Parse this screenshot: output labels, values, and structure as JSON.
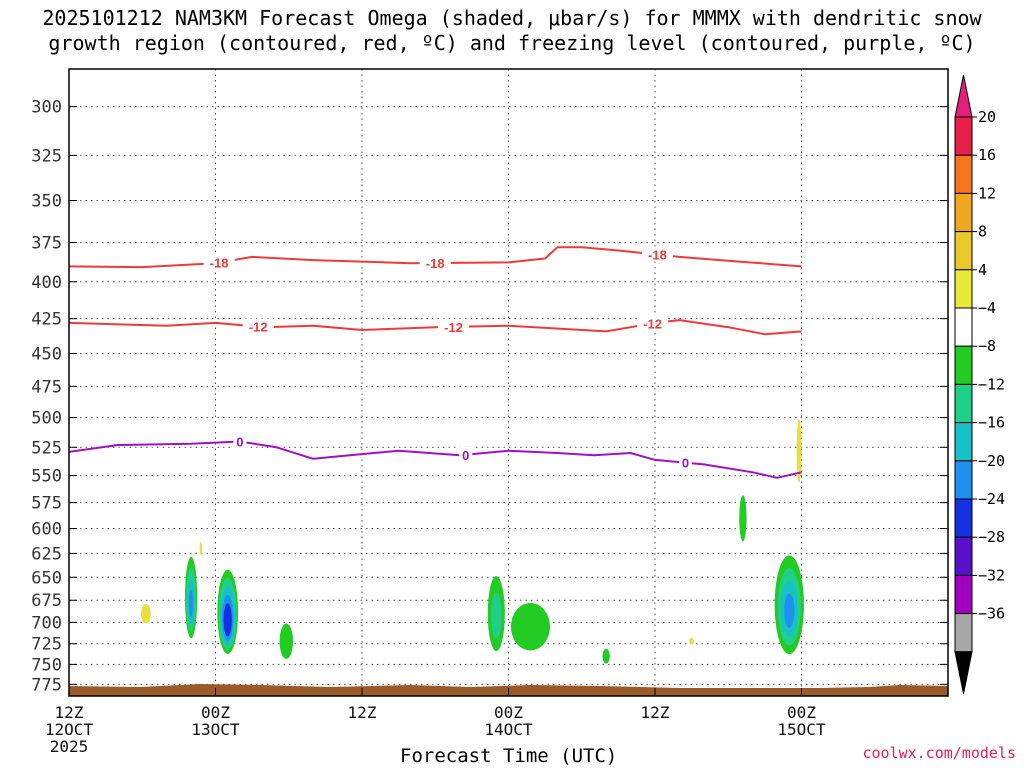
{
  "chart_data": {
    "type": "heatmap",
    "title_line1": "2025101212 NAM3KM Forecast Omega (shaded, μbar/s) for MMMX with dendritic snow",
    "title_line2": "growth region (contoured, red, ºC) and freezing level (contoured, purple, ºC)",
    "xlabel": "Forecast Time (UTC)",
    "credit": "coolwx.com/models",
    "x_range_hours": [
      0,
      72
    ],
    "y_range_hpa": [
      282,
      790
    ],
    "y_ticks": [
      300,
      325,
      350,
      375,
      400,
      425,
      450,
      475,
      500,
      525,
      550,
      575,
      600,
      625,
      650,
      675,
      700,
      725,
      750,
      775
    ],
    "x_ticks": [
      {
        "hour": 0,
        "lines": [
          "12Z",
          "12OCT",
          "2025"
        ]
      },
      {
        "hour": 12,
        "lines": [
          "00Z",
          "13OCT"
        ]
      },
      {
        "hour": 24,
        "lines": [
          "12Z"
        ]
      },
      {
        "hour": 36,
        "lines": [
          "00Z",
          "14OCT"
        ]
      },
      {
        "hour": 48,
        "lines": [
          "12Z"
        ]
      },
      {
        "hour": 60,
        "lines": [
          "00Z",
          "15OCT"
        ]
      }
    ],
    "colorbar": {
      "labels": [
        "20",
        "16",
        "12",
        "8",
        "4",
        "−4",
        "−8",
        "−12",
        "−16",
        "−20",
        "−24",
        "−28",
        "−32",
        "−36"
      ],
      "colors": [
        "#e8204a",
        "#f5761e",
        "#f0a820",
        "#e8c82a",
        "#eaea38",
        "#ffffff",
        "#22cc22",
        "#1fd08a",
        "#18c0c8",
        "#1f90f0",
        "#1530e0",
        "#5a10c8",
        "#a000c0",
        "#a8a8a8"
      ],
      "top_arrow_color": "#e0207a",
      "bottom_arrow_color": "#000000"
    },
    "contours": [
      {
        "label": "-18",
        "color": "#ee3a3a",
        "points": [
          [
            0,
            390
          ],
          [
            6,
            390.5
          ],
          [
            12,
            388
          ],
          [
            15,
            384
          ],
          [
            20,
            386
          ],
          [
            28,
            388
          ],
          [
            36,
            387.5
          ],
          [
            39,
            385
          ],
          [
            40,
            378
          ],
          [
            42,
            378
          ],
          [
            45,
            380
          ],
          [
            50,
            384
          ],
          [
            55,
            387
          ],
          [
            60,
            390
          ]
        ],
        "label_hours": [
          12.3,
          30,
          48.2
        ]
      },
      {
        "label": "-12",
        "color": "#ee3a3a",
        "points": [
          [
            0,
            428
          ],
          [
            8,
            430
          ],
          [
            12,
            428
          ],
          [
            16,
            431
          ],
          [
            20,
            430
          ],
          [
            24,
            433
          ],
          [
            30,
            431
          ],
          [
            36,
            430
          ],
          [
            44,
            434
          ],
          [
            48,
            428
          ],
          [
            50,
            426
          ],
          [
            54,
            431
          ],
          [
            57,
            436
          ],
          [
            60,
            434
          ]
        ],
        "label_hours": [
          15.5,
          31.5,
          47.8
        ]
      },
      {
        "label": "0",
        "color": "#a010c8",
        "points": [
          [
            0,
            529
          ],
          [
            4,
            523
          ],
          [
            10,
            522
          ],
          [
            14,
            520
          ],
          [
            17,
            525
          ],
          [
            20,
            535
          ],
          [
            23,
            532
          ],
          [
            27,
            528
          ],
          [
            32,
            532
          ],
          [
            36,
            528
          ],
          [
            40,
            530
          ],
          [
            43,
            532
          ],
          [
            46,
            530
          ],
          [
            48,
            536
          ],
          [
            52,
            540
          ],
          [
            56,
            547
          ],
          [
            58,
            552
          ],
          [
            60,
            547
          ]
        ],
        "label_hours": [
          14,
          32.5,
          50.5
        ]
      }
    ],
    "omega_regions": [
      {
        "hour": 10.0,
        "hpa": 672,
        "w": 1.0,
        "h": 90,
        "value": -16
      },
      {
        "hour": 13.0,
        "hpa": 688,
        "w": 1.7,
        "h": 95,
        "value": -24
      },
      {
        "hour": 17.8,
        "hpa": 722,
        "w": 1.1,
        "h": 42,
        "value": -6
      },
      {
        "hour": 35.0,
        "hpa": 690,
        "w": 1.4,
        "h": 85,
        "value": -10
      },
      {
        "hour": 37.8,
        "hpa": 705,
        "w": 3.2,
        "h": 55,
        "value": -6
      },
      {
        "hour": 44.0,
        "hpa": 740,
        "w": 0.6,
        "h": 18,
        "value": -6
      },
      {
        "hour": 55.2,
        "hpa": 590,
        "w": 0.6,
        "h": 45,
        "value": -6
      },
      {
        "hour": 59.0,
        "hpa": 680,
        "w": 2.4,
        "h": 110,
        "value": -16
      },
      {
        "hour": 6.3,
        "hpa": 690,
        "w": 0.8,
        "h": 22,
        "value": 6
      },
      {
        "hour": 10.8,
        "hpa": 620,
        "w": 0.2,
        "h": 14,
        "value": 6
      },
      {
        "hour": 51.0,
        "hpa": 722,
        "w": 0.4,
        "h": 8,
        "value": 6
      },
      {
        "hour": 59.8,
        "hpa": 528,
        "w": 0.4,
        "h": 55,
        "value": 6
      }
    ]
  }
}
